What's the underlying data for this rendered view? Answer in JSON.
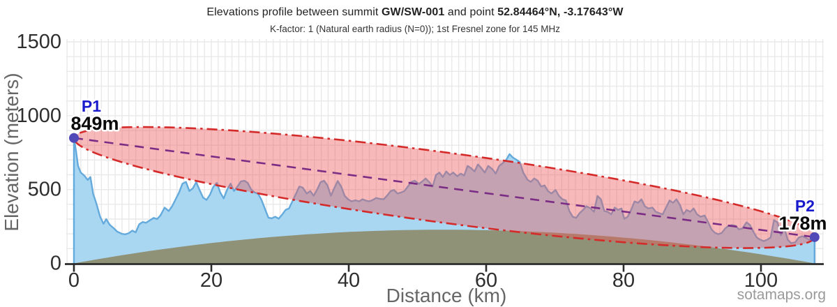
{
  "header": {
    "title_parts": [
      {
        "text": "Elevations profile between summit ",
        "bold": false
      },
      {
        "text": "GW/SW-001",
        "bold": true
      },
      {
        "text": " and point ",
        "bold": false
      },
      {
        "text": "52.84464°N, -3.17643°W",
        "bold": true
      }
    ],
    "subtitle": "K-factor: 1 (Natural earth radius (N=0)); 1st Fresnel zone for 145 MHz"
  },
  "watermark": "sotamaps.org",
  "chart_data": {
    "type": "area",
    "xlabel": "Distance (km)",
    "ylabel": "Elevation (meters)",
    "xlim": [
      0,
      109
    ],
    "ylim": [
      0,
      1500
    ],
    "x_ticks": [
      0,
      20,
      40,
      60,
      80,
      100
    ],
    "y_ticks": [
      0,
      500,
      1000,
      1500
    ],
    "grid": {
      "x_minor_step_km": 1,
      "y_minor_step_m": 100
    },
    "total_distance_km": 107.8,
    "points": {
      "p1": {
        "label": "P1",
        "value_label": "849m",
        "distance_km": 0,
        "elevation_m": 849
      },
      "p2": {
        "label": "P2",
        "value_label": "178m",
        "distance_km": 107.8,
        "elevation_m": 178
      }
    },
    "fresnel_zone": {
      "frequency_mhz": 145,
      "max_radius_m": 237
    },
    "earth_curvature": {
      "k_factor": 1,
      "max_bulge_m": 228
    },
    "terrain_profile": {
      "x_km": [
        0,
        0.3,
        0.6,
        1.0,
        1.5,
        2.0,
        2.4,
        2.8,
        3.3,
        3.8,
        4.3,
        4.7,
        5.2,
        5.8,
        6.3,
        7.0,
        7.5,
        8.0,
        8.5,
        9.0,
        9.5,
        10.0,
        10.5,
        11.0,
        11.6,
        12.1,
        12.6,
        13.2,
        13.8,
        14.3,
        14.8,
        15.3,
        15.8,
        16.3,
        16.8,
        17.3,
        17.8,
        18.3,
        18.8,
        19.3,
        19.8,
        20.3,
        20.8,
        21.3,
        21.8,
        22.3,
        22.8,
        23.3,
        23.8,
        24.3,
        24.8,
        25.3,
        25.8,
        26.3,
        26.8,
        27.3,
        27.8,
        28.3,
        28.8,
        29.3,
        29.8,
        30.3,
        30.8,
        31.3,
        31.8,
        32.3,
        32.8,
        33.3,
        33.9,
        34.4,
        34.9,
        35.4,
        35.9,
        36.4,
        36.9,
        37.4,
        37.9,
        38.4,
        38.9,
        39.4,
        39.9,
        40.4,
        41.0,
        41.5,
        42.0,
        42.5,
        43.0,
        43.5,
        44.0,
        44.5,
        45.1,
        45.6,
        46.1,
        46.6,
        47.1,
        47.6,
        48.1,
        48.6,
        49.1,
        49.6,
        50.2,
        50.7,
        51.2,
        51.7,
        52.2,
        52.7,
        53.2,
        53.7,
        54.2,
        54.7,
        55.2,
        55.8,
        56.3,
        56.8,
        57.3,
        57.8,
        58.3,
        58.8,
        59.3,
        59.8,
        60.3,
        60.9,
        61.4,
        61.9,
        62.4,
        62.9,
        63.4,
        63.9,
        64.4,
        64.9,
        65.4,
        66.0,
        66.5,
        67.0,
        67.5,
        68.0,
        68.5,
        69.0,
        69.5,
        70.1,
        70.6,
        71.1,
        71.6,
        72.1,
        72.6,
        73.1,
        73.6,
        74.1,
        74.6,
        75.2,
        75.7,
        76.2,
        76.7,
        77.2,
        77.7,
        78.2,
        78.7,
        79.2,
        79.7,
        80.1,
        80.6,
        81.1,
        81.6,
        82.1,
        82.6,
        83.1,
        83.6,
        84.2,
        84.7,
        85.2,
        85.7,
        86.2,
        86.7,
        87.2,
        87.7,
        88.2,
        88.7,
        89.2,
        89.7,
        90.2,
        90.7,
        91.2,
        91.8,
        92.3,
        92.8,
        93.3,
        93.8,
        94.3,
        94.8,
        95.3,
        95.8,
        96.3,
        96.8,
        97.3,
        97.9,
        98.4,
        98.9,
        99.4,
        99.9,
        100.4,
        100.9,
        101.4,
        101.9,
        102.4,
        102.9,
        103.4,
        103.9,
        104.4,
        105.0,
        105.5,
        106.0,
        106.5,
        107.0,
        107.5,
        107.8
      ],
      "elevation_m": [
        849,
        760,
        660,
        615,
        595,
        565,
        585,
        470,
        400,
        318,
        268,
        300,
        262,
        238,
        215,
        200,
        197,
        205,
        222,
        210,
        265,
        280,
        275,
        290,
        308,
        300,
        325,
        378,
        355,
        388,
        434,
        480,
        540,
        552,
        490,
        508,
        550,
        495,
        445,
        430,
        465,
        520,
        545,
        480,
        440,
        500,
        540,
        490,
        520,
        555,
        560,
        545,
        500,
        480,
        472,
        430,
        370,
        310,
        305,
        316,
        303,
        330,
        362,
        372,
        420,
        470,
        520,
        513,
        473,
        490,
        458,
        500,
        550,
        560,
        528,
        458,
        510,
        558,
        520,
        458,
        434,
        420,
        427,
        420,
        434,
        425,
        420,
        430,
        443,
        437,
        434,
        460,
        490,
        497,
        473,
        480,
        490,
        520,
        552,
        560,
        538,
        555,
        575,
        552,
        520,
        598,
        615,
        585,
        622,
        598,
        615,
        590,
        608,
        595,
        660,
        645,
        622,
        670,
        645,
        615,
        660,
        638,
        608,
        660,
        678,
        700,
        740,
        716,
        702,
        685,
        615,
        567,
        552,
        575,
        560,
        520,
        528,
        490,
        473,
        497,
        457,
        434,
        426,
        355,
        316,
        308,
        340,
        362,
        387,
        372,
        349,
        457,
        434,
        355,
        349,
        332,
        378,
        362,
        372,
        302,
        316,
        362,
        420,
        410,
        434,
        387,
        372,
        378,
        349,
        340,
        332,
        380,
        426,
        410,
        434,
        396,
        332,
        362,
        349,
        372,
        332,
        316,
        324,
        280,
        230,
        207,
        198,
        207,
        237,
        254,
        260,
        254,
        230,
        237,
        278,
        260,
        214,
        175,
        160,
        151,
        160,
        175,
        293,
        278,
        190,
        237,
        160,
        137,
        143,
        175,
        184,
        175,
        160,
        167,
        178
      ]
    },
    "colors": {
      "terrain_fill": "#a9d7f2",
      "terrain_stroke": "#64aadc",
      "earth_fill": "#8e8e70",
      "fresnel_fill": "rgba(235,88,88,0.42)",
      "fresnel_border": "#d42a2a",
      "line_of_sight": "#7b2d86",
      "endpoint_dot": "#5149b8",
      "point_label": "#1a1acd",
      "value_label": "#0a0a0a",
      "axis": "#2b2b2b",
      "tick_label": "#2e2e2e",
      "axis_title": "#666666",
      "grid": "#e9e9e9",
      "watermark": "#9a9a9a"
    }
  }
}
